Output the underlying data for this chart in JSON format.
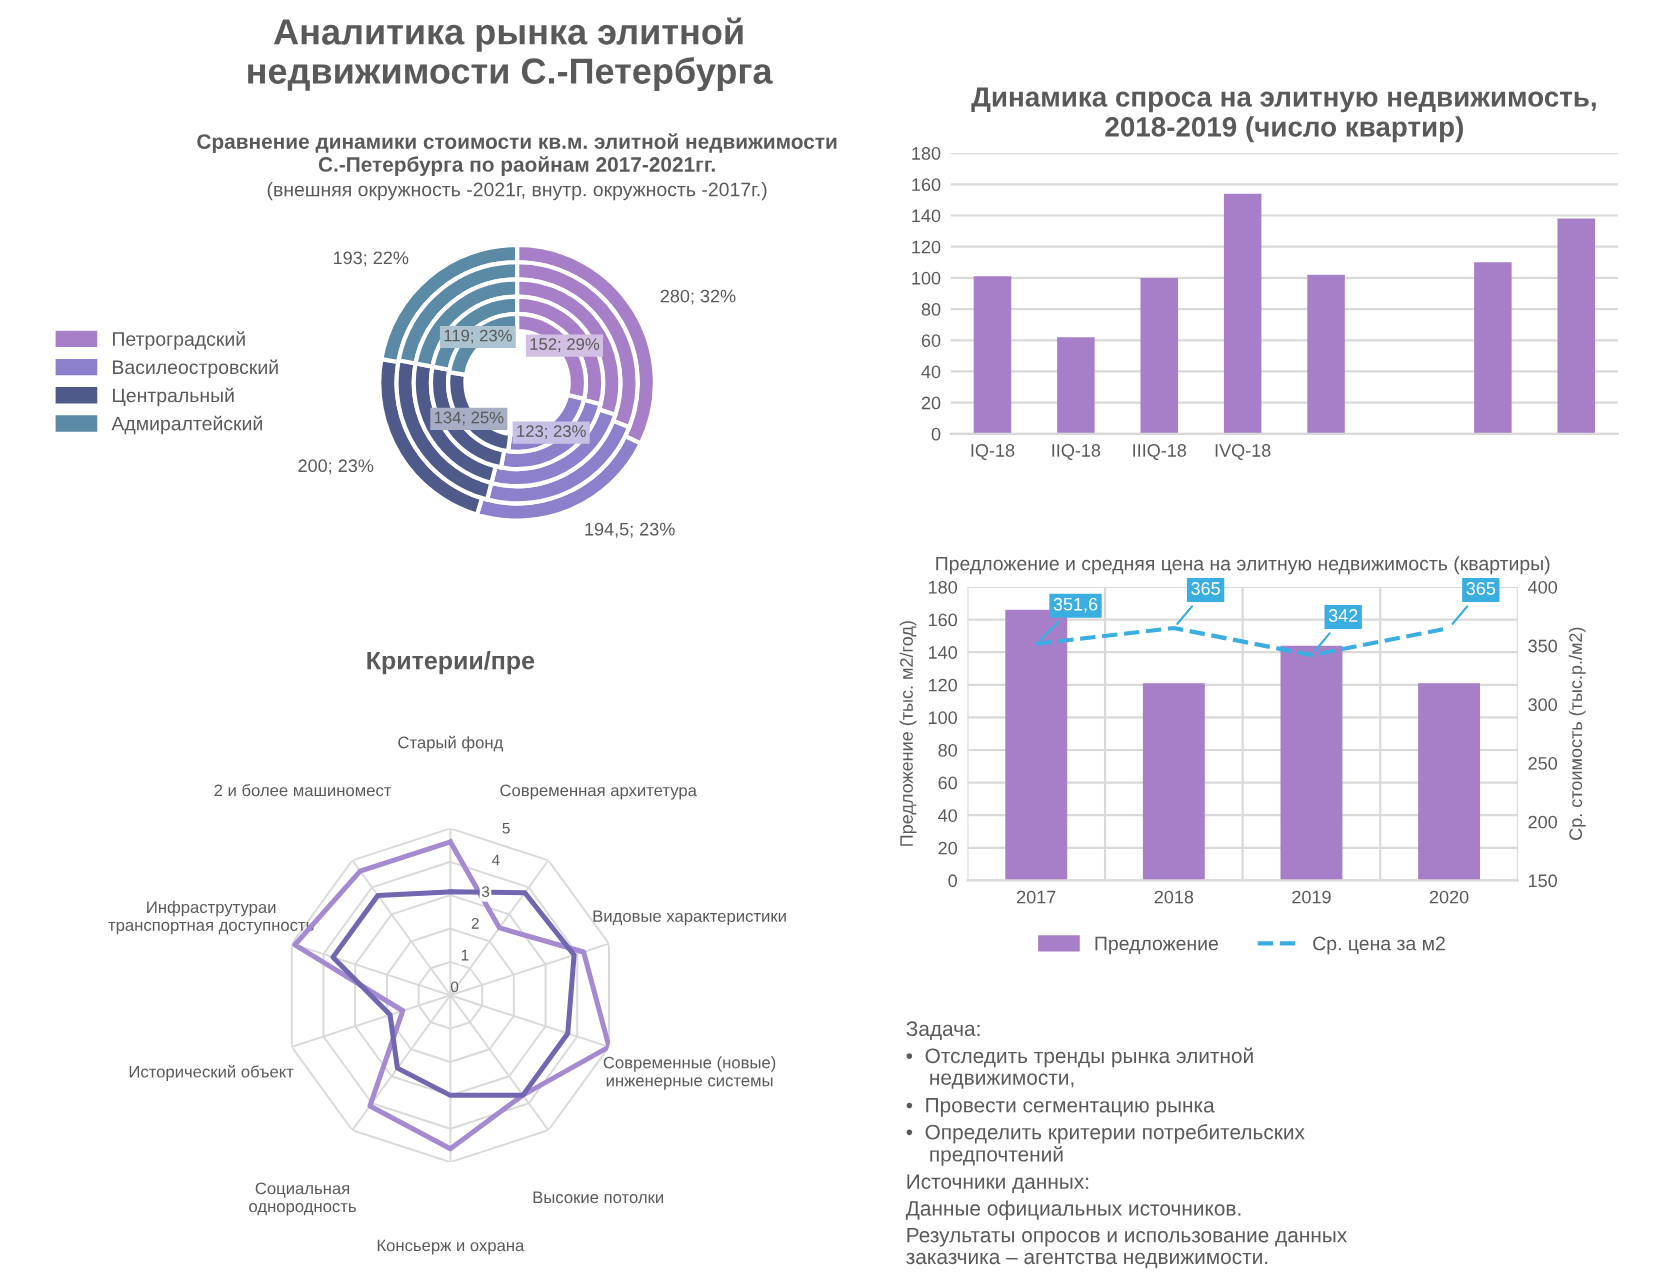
{
  "chart_data": [
    {
      "type": "donut",
      "title": "Сравнение динамики стоимости кв.м. элитной недвижимости\nС.-Петербурга по раойнам 2017-2021гг.",
      "subtitle": "(внешняя окружность -2021г, внутр. окружность -2017г.)",
      "categories": [
        "Петроградский",
        "Василеостровский",
        "Центральный",
        "Адмиралтейский"
      ],
      "colors": [
        "#a77fc8",
        "#8c80cc",
        "#4e5b8a",
        "#5a8aa6"
      ],
      "legend": "left",
      "series": [
        {
          "values": [
            280,
            194.5,
            200,
            193
          ],
          "value_labels": [
            "280; 32%",
            "194,5; 23%",
            "200; 23%",
            "193; 22%"
          ]
        },
        {
          "values": [
            31,
            23,
            24,
            22
          ]
        },
        {
          "values": [
            30,
            24,
            24,
            22
          ]
        },
        {
          "values": [
            29,
            24,
            25,
            22
          ]
        },
        {
          "values": [
            152,
            123,
            134,
            119
          ],
          "value_labels": [
            "152; 29%",
            "123; 23%",
            "134; 25%",
            "119; 23%"
          ]
        }
      ]
    },
    {
      "type": "other",
      "title": "Аналитика рынка элитной\nнедвижимости С.-Петербурга"
    },
    {
      "type": "bar",
      "title": "Динамика спроса на элитную недвижимость,\n2018-2019 (число квартир)",
      "categories": [
        "IQ-18",
        "IIQ-18",
        "IIIQ-18",
        "IVQ-18",
        null,
        null,
        null,
        null
      ],
      "series": [
        {
          "color": "#a77fc8",
          "values": [
            101,
            62,
            100,
            154,
            102,
            null,
            110,
            138
          ]
        }
      ],
      "ylim": [
        0,
        180
      ],
      "yticks": [
        0,
        20,
        40,
        60,
        80,
        100,
        120,
        140,
        160,
        180
      ],
      "grid": "y"
    },
    {
      "type": "other",
      "annotations": [
        "Задача:",
        "•  Отследить тренды рынка элитной\n    недвижимости,",
        "•  Провести сегментацию рынка",
        "•  Определить критерии потребительских\n    предпочтений",
        "Источники данных:",
        "Данные официальных источников.",
        "Результаты опросов и использование данных\nзаказчика – агентства недвижимости."
      ]
    },
    {
      "type": "bar",
      "title": "Предложение и средняя цена на элитную недвижимость (квартиры)",
      "categories": [
        "2017",
        "2018",
        "2019",
        "2020"
      ],
      "ylabel": "Предложение (тыс. м2/год)",
      "y2label": "Ср. стоимость (тыс.р./м2)",
      "series": [
        {
          "name": "Предложение",
          "color": "#a77fc8",
          "values": [
            166,
            121,
            144,
            121
          ]
        },
        {
          "name": "Ср. цена за м2",
          "type": "line",
          "axis": "y2",
          "line_style": "dashed",
          "color": "#3aaee0",
          "values": [
            351.6,
            365,
            342,
            365
          ],
          "value_labels": [
            "351,6",
            "365",
            "342",
            "365"
          ]
        }
      ],
      "ylim": [
        0,
        180
      ],
      "yticks": [
        0,
        20,
        40,
        60,
        80,
        100,
        120,
        140,
        160,
        180
      ],
      "y2lim": [
        150,
        400
      ],
      "y2ticks": [
        150,
        200,
        250,
        300,
        350,
        400
      ],
      "grid": true,
      "legend": "bottom"
    },
    {
      "type": "radar",
      "title": "Критерии/пре",
      "categories": [
        "Старый фонд",
        "Современная архитетура",
        "Видовые характеристики",
        "Современные (новые)\nинженерные системы",
        "Высокие потолки",
        "Консьерж и охрана",
        "Социальная\nоднородность",
        "Исторический объект",
        "Инфраструтураи\nтранспортная доступность",
        "2 и более машиномест"
      ],
      "series": [
        {
          "color": "#a48ad0",
          "values": [
            4.6,
            2.5,
            4.2,
            5,
            3.7,
            4.6,
            4.1,
            1.5,
            4.9,
            4.6
          ]
        },
        {
          "color": "#7166b0",
          "values": [
            3.1,
            3.8,
            3.9,
            3.7,
            3.7,
            3.0,
            2.7,
            1.9,
            3.7,
            3.7
          ]
        }
      ],
      "ylim": [
        0,
        5
      ],
      "yticks": [
        0,
        1,
        2,
        3,
        4,
        5
      ],
      "grid": true
    }
  ]
}
